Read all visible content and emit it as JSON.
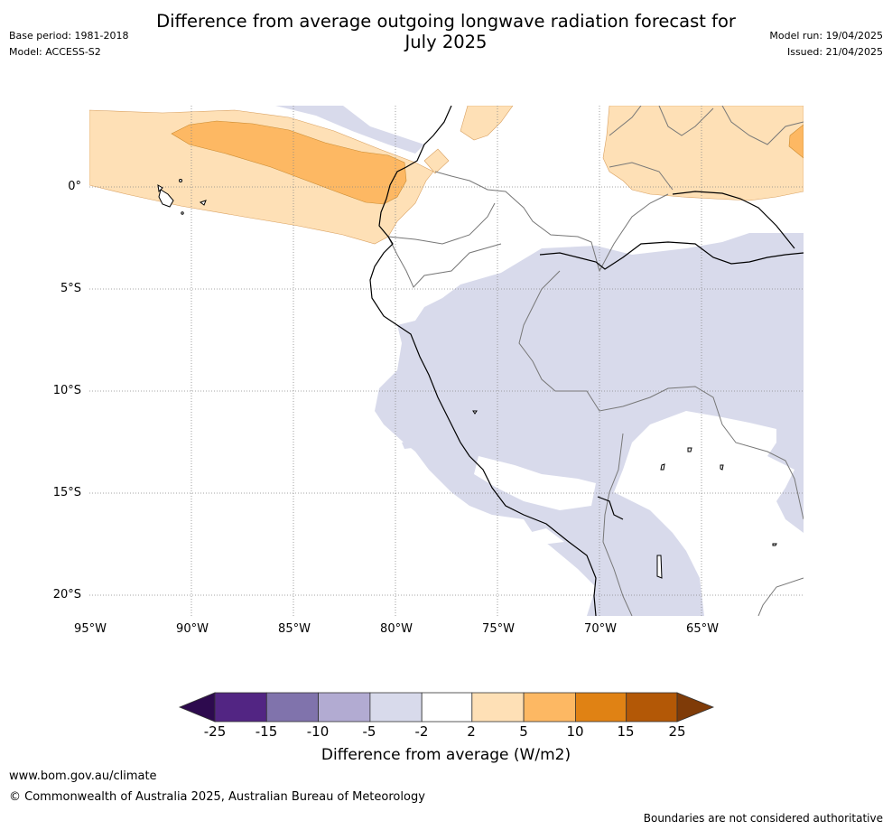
{
  "title_line1": "Difference from average outgoing longwave radiation forecast for",
  "title_line2": "July 2025",
  "meta_left": {
    "base_period": "Base period: 1981-2018",
    "model": "Model: ACCESS-S2"
  },
  "meta_right": {
    "model_run": "Model run: 19/04/2025",
    "issued": "Issued: 21/04/2025"
  },
  "lat_labels": [
    "0°",
    "5°S",
    "10°S",
    "15°S",
    "20°S"
  ],
  "lon_labels": [
    "95°W",
    "90°W",
    "85°W",
    "80°W",
    "75°W",
    "70°W",
    "65°W"
  ],
  "colorbar": {
    "ticks": [
      "-25",
      "-15",
      "-10",
      "-5",
      "-2",
      "2",
      "5",
      "10",
      "15",
      "25"
    ],
    "colors": {
      "lt_m25": "#2d0a4e",
      "m25_m15": "#522583",
      "m15_m10": "#8073ac",
      "m10_m5": "#b2abd2",
      "m5_m2": "#d8daeb",
      "m2_2": "#ffffff",
      "2_5": "#fee0b6",
      "5_10": "#fdb863",
      "10_15": "#e08214",
      "15_25": "#b35806",
      "gt_25": "#7f3b08"
    },
    "title": "Difference from average (W/m2)"
  },
  "footer": {
    "url": "www.bom.gov.au/climate",
    "copyright": "© Commonwealth of Australia 2025, Australian Bureau of Meteorology",
    "disclaimer": "Boundaries are not considered authoritative"
  }
}
